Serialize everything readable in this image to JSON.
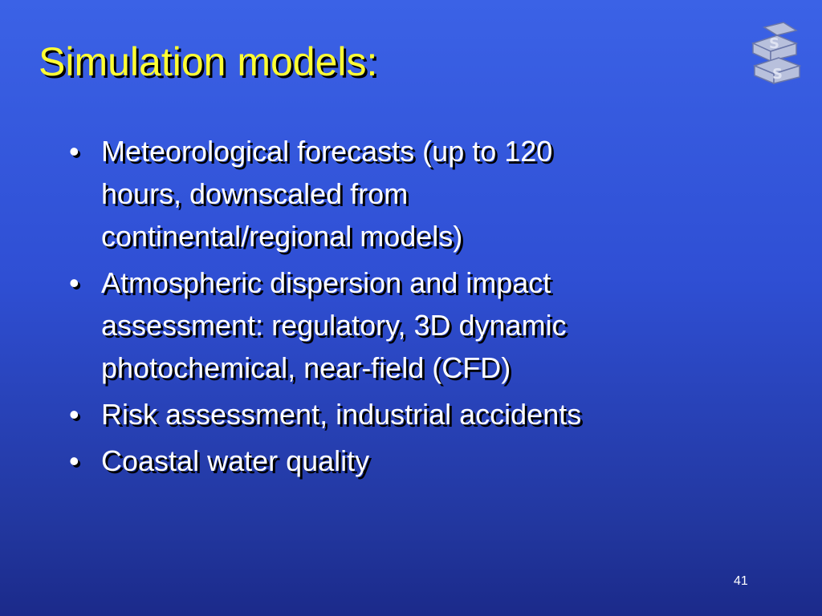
{
  "slide": {
    "title": "Simulation models:",
    "bullets": [
      [
        "Meteorological forecasts (up to 120",
        "hours, downscaled from",
        "continental/regional models)"
      ],
      [
        "Atmospheric dispersion and impact",
        "assessment: regulatory, 3D dynamic",
        "photochemical, near-field (CFD)"
      ],
      [
        "Risk assessment, industrial accidents"
      ],
      [
        "Coastal water quality"
      ]
    ],
    "page_number": 41
  }
}
